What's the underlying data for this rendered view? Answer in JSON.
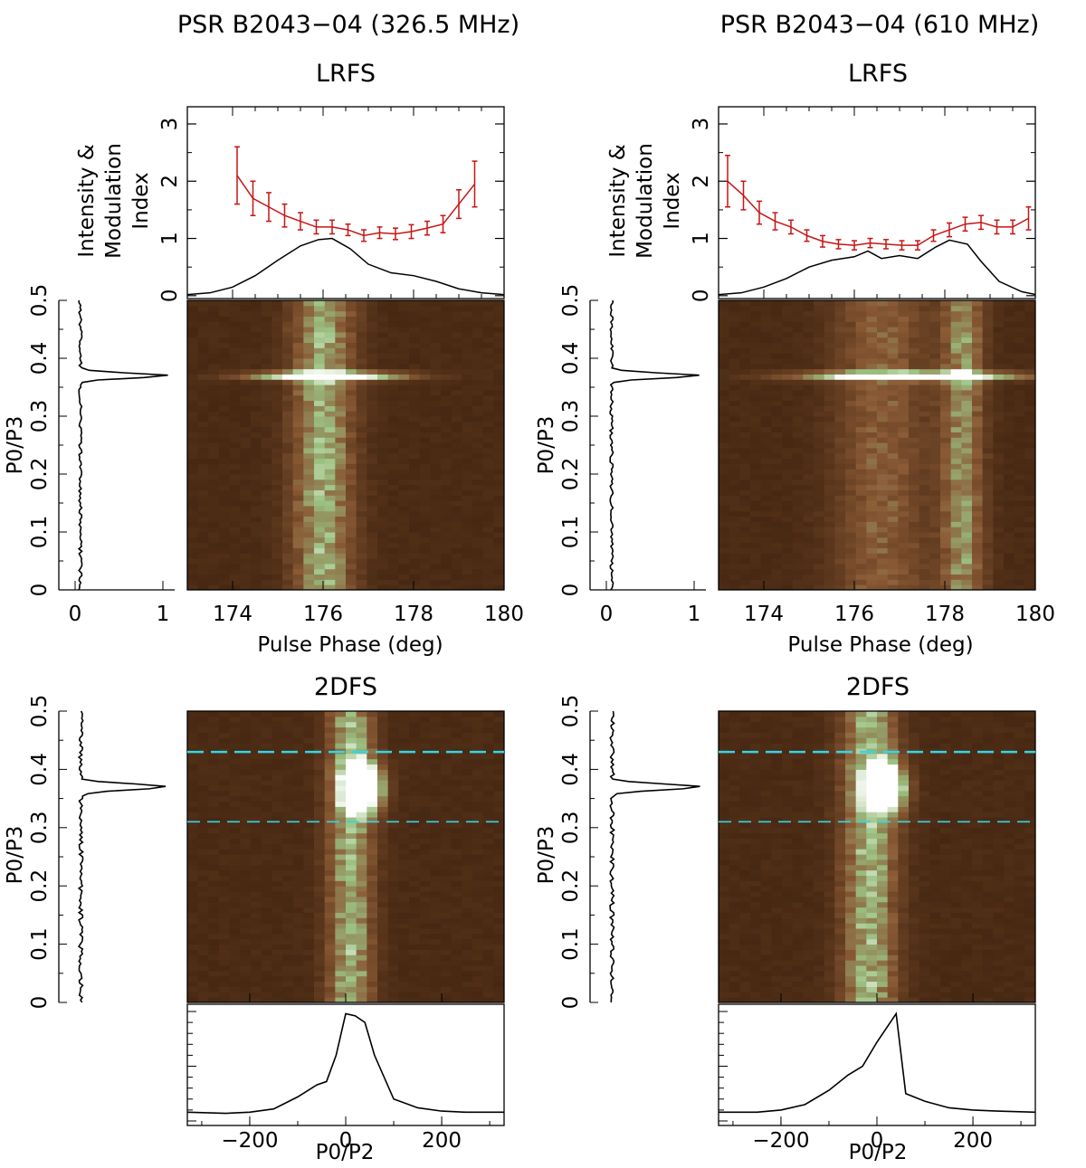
{
  "columns": [
    {
      "title": "PSR B2043−04 (326.5 MHz)",
      "lrfs_title": "LRFS",
      "twodfs_title": "2DFS",
      "profile_ylabel_line1": "Intensity &",
      "profile_ylabel_line2": "Modulation",
      "profile_ylabel_line3": "Index",
      "p3_ylabel": "P0/P3",
      "phase_xlabel": "Pulse Phase (deg)",
      "p2_xlabel": "P0/P2"
    },
    {
      "title": "PSR B2043−04 (610 MHz)",
      "lrfs_title": "LRFS",
      "twodfs_title": "2DFS",
      "profile_ylabel_line1": "Intensity &",
      "profile_ylabel_line2": "Modulation",
      "profile_ylabel_line3": "Index",
      "p3_ylabel": "P0/P3",
      "phase_xlabel": "Pulse Phase (deg)",
      "p2_xlabel": "P0/P2"
    }
  ],
  "chart_data": [
    {
      "type": "line",
      "panel": "LRFS pulse profile and modulation index (326.5 MHz)",
      "xlabel": "Pulse Phase (deg)",
      "ylabel": "Intensity & Modulation Index",
      "xlim": [
        173.0,
        180.0
      ],
      "ylim": [
        -0.05,
        3.3
      ],
      "yticks": [
        0,
        1,
        2,
        3
      ],
      "series": [
        {
          "name": "intensity",
          "color": "#000000",
          "x": [
            173.0,
            173.5,
            174.0,
            174.5,
            175.0,
            175.5,
            175.9,
            176.2,
            176.6,
            177.0,
            177.5,
            178.0,
            178.5,
            179.0,
            179.5,
            180.0
          ],
          "y": [
            0.02,
            0.05,
            0.15,
            0.35,
            0.62,
            0.87,
            0.98,
            1.0,
            0.82,
            0.55,
            0.4,
            0.35,
            0.25,
            0.12,
            0.05,
            0.02
          ]
        },
        {
          "name": "modulation index",
          "color": "#c81414",
          "x": [
            174.1,
            174.45,
            174.8,
            175.15,
            175.5,
            175.85,
            176.2,
            176.55,
            176.9,
            177.25,
            177.6,
            177.95,
            178.3,
            178.65,
            179.0,
            179.35
          ],
          "y": [
            2.1,
            1.7,
            1.55,
            1.4,
            1.3,
            1.2,
            1.2,
            1.15,
            1.05,
            1.1,
            1.08,
            1.12,
            1.18,
            1.25,
            1.6,
            1.95
          ],
          "err": [
            0.5,
            0.3,
            0.25,
            0.2,
            0.15,
            0.12,
            0.12,
            0.1,
            0.1,
            0.1,
            0.1,
            0.12,
            0.12,
            0.15,
            0.25,
            0.4
          ]
        }
      ]
    },
    {
      "type": "heatmap",
      "panel": "LRFS (326.5 MHz)",
      "xlabel": "Pulse Phase (deg)",
      "ylabel": "P0/P3",
      "xlim": [
        173.0,
        180.0
      ],
      "ylim": [
        0,
        0.5
      ],
      "xticks": [
        174,
        176,
        178,
        180
      ],
      "feature_p3_peak": 0.37,
      "side_spectrum": {
        "xticks": [
          0,
          1
        ],
        "peak_y": 0.37,
        "peak_value": 1.0,
        "baseline": 0.06
      }
    },
    {
      "type": "heatmap",
      "panel": "2DFS (326.5 MHz)",
      "xlabel": "P0/P2",
      "ylabel": "P0/P3",
      "xlim": [
        -330,
        330
      ],
      "ylim": [
        0,
        0.5
      ],
      "xticks": [
        -200,
        0,
        200
      ],
      "yticks": [
        0,
        0.1,
        0.2,
        0.3,
        0.4,
        0.5
      ],
      "integration_region": {
        "p3_low": 0.31,
        "p3_high": 0.43,
        "color": "#31d7e6"
      },
      "side_spectrum": {
        "peak_y": 0.37,
        "peak_value": 1.0,
        "baseline": 0.06
      },
      "bottom_profile": {
        "x": [
          -330,
          -250,
          -200,
          -150,
          -100,
          -60,
          -40,
          -20,
          0,
          20,
          40,
          60,
          100,
          150,
          200,
          250,
          330
        ],
        "y": [
          0.08,
          0.07,
          0.08,
          0.11,
          0.22,
          0.33,
          0.36,
          0.6,
          0.98,
          0.96,
          0.9,
          0.6,
          0.2,
          0.12,
          0.09,
          0.08,
          0.08
        ]
      }
    },
    {
      "type": "line",
      "panel": "LRFS pulse profile and modulation index (610 MHz)",
      "xlabel": "Pulse Phase (deg)",
      "ylabel": "Intensity & Modulation Index",
      "xlim": [
        173.0,
        180.0
      ],
      "ylim": [
        -0.05,
        3.3
      ],
      "yticks": [
        0,
        1,
        2,
        3
      ],
      "series": [
        {
          "name": "intensity",
          "color": "#000000",
          "x": [
            173.0,
            173.5,
            174.0,
            174.5,
            175.0,
            175.5,
            176.0,
            176.3,
            176.6,
            177.0,
            177.4,
            177.8,
            178.1,
            178.5,
            178.8,
            179.2,
            179.7,
            180.0
          ],
          "y": [
            0.02,
            0.05,
            0.15,
            0.3,
            0.5,
            0.62,
            0.68,
            0.78,
            0.65,
            0.7,
            0.65,
            0.85,
            0.97,
            0.9,
            0.6,
            0.25,
            0.07,
            0.02
          ]
        },
        {
          "name": "modulation index",
          "color": "#c81414",
          "x": [
            173.2,
            173.55,
            173.9,
            174.25,
            174.6,
            174.95,
            175.3,
            175.65,
            176.0,
            176.35,
            176.7,
            177.05,
            177.4,
            177.75,
            178.1,
            178.45,
            178.8,
            179.15,
            179.5,
            179.85
          ],
          "y": [
            2.0,
            1.75,
            1.45,
            1.3,
            1.2,
            1.05,
            0.95,
            0.9,
            0.88,
            0.92,
            0.9,
            0.88,
            0.88,
            1.05,
            1.15,
            1.25,
            1.28,
            1.2,
            1.2,
            1.35
          ],
          "err": [
            0.45,
            0.25,
            0.2,
            0.15,
            0.12,
            0.1,
            0.1,
            0.08,
            0.08,
            0.08,
            0.08,
            0.08,
            0.08,
            0.1,
            0.12,
            0.12,
            0.12,
            0.12,
            0.12,
            0.2
          ]
        }
      ]
    },
    {
      "type": "heatmap",
      "panel": "LRFS (610 MHz)",
      "xlabel": "Pulse Phase (deg)",
      "ylabel": "P0/P3",
      "xlim": [
        173.0,
        180.0
      ],
      "ylim": [
        0,
        0.5
      ],
      "xticks": [
        174,
        176,
        178,
        180
      ],
      "feature_p3_peak": 0.37,
      "side_spectrum": {
        "xticks": [
          0,
          1
        ],
        "peak_y": 0.37,
        "peak_value": 1.0,
        "baseline": 0.06
      }
    },
    {
      "type": "heatmap",
      "panel": "2DFS (610 MHz)",
      "xlabel": "P0/P2",
      "ylabel": "P0/P3",
      "xlim": [
        -330,
        330
      ],
      "ylim": [
        0,
        0.5
      ],
      "xticks": [
        -200,
        0,
        200
      ],
      "yticks": [
        0,
        0.1,
        0.2,
        0.3,
        0.4,
        0.5
      ],
      "integration_region": {
        "p3_low": 0.31,
        "p3_high": 0.43,
        "color": "#31d7e6"
      },
      "side_spectrum": {
        "peak_y": 0.37,
        "peak_value": 1.0,
        "baseline": 0.06
      },
      "bottom_profile": {
        "x": [
          -330,
          -250,
          -200,
          -150,
          -100,
          -60,
          -30,
          0,
          20,
          40,
          60,
          100,
          150,
          200,
          250,
          330
        ],
        "y": [
          0.08,
          0.08,
          0.1,
          0.15,
          0.28,
          0.42,
          0.5,
          0.72,
          0.85,
          0.98,
          0.25,
          0.18,
          0.12,
          0.1,
          0.09,
          0.08
        ]
      }
    }
  ],
  "colors": {
    "heat_dark": "#2e1505",
    "heat_mid": "#8a5a35",
    "heat_green": "#9cc283",
    "heat_white": "#ffffff",
    "mod_index": "#c81414",
    "cyan": "#31d7e6"
  }
}
